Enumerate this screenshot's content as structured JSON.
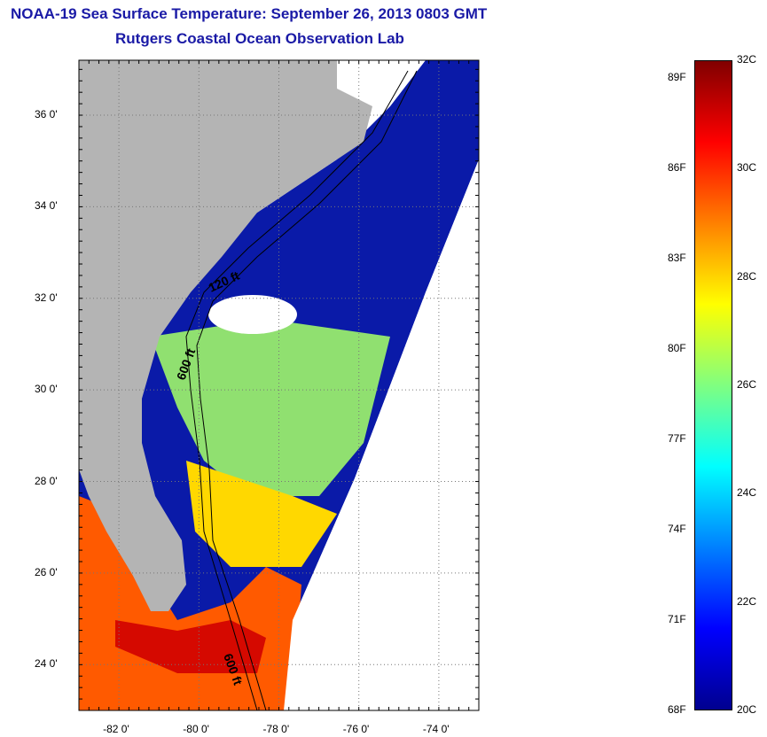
{
  "title": {
    "line1": "NOAA-19 Sea Surface Temperature:  September 26, 2013 0803 GMT",
    "line2": "Rutgers Coastal Ocean Observation Lab"
  },
  "map": {
    "lat_labels": [
      "36 0'",
      "34 0'",
      "32 0'",
      "30 0'",
      "28 0'",
      "26 0'",
      "24 0'"
    ],
    "lon_labels": [
      "-82 0'",
      "-80 0'",
      "-78 0'",
      "-76 0'",
      "-74 0'"
    ],
    "contour_labels": [
      "120 ft",
      "600 ft",
      "600 ft"
    ],
    "lat_range": [
      23,
      37.2
    ],
    "lon_range": [
      -83,
      -73
    ],
    "colors": {
      "land": "#b4b4b4",
      "no_data": "#ffffff",
      "grid": "#777777"
    }
  },
  "colorbar": {
    "celsius_labels": [
      "32C",
      "30C",
      "28C",
      "26C",
      "24C",
      "22C",
      "20C"
    ],
    "fahrenheit_labels": [
      "89F",
      "86F",
      "83F",
      "80F",
      "77F",
      "74F",
      "71F",
      "68F"
    ],
    "range_c": [
      20,
      32
    ],
    "colormap": [
      "#00008f",
      "#0000ff",
      "#0080ff",
      "#00ffff",
      "#80ff80",
      "#ffff00",
      "#ff8000",
      "#ff0000",
      "#800000"
    ]
  }
}
